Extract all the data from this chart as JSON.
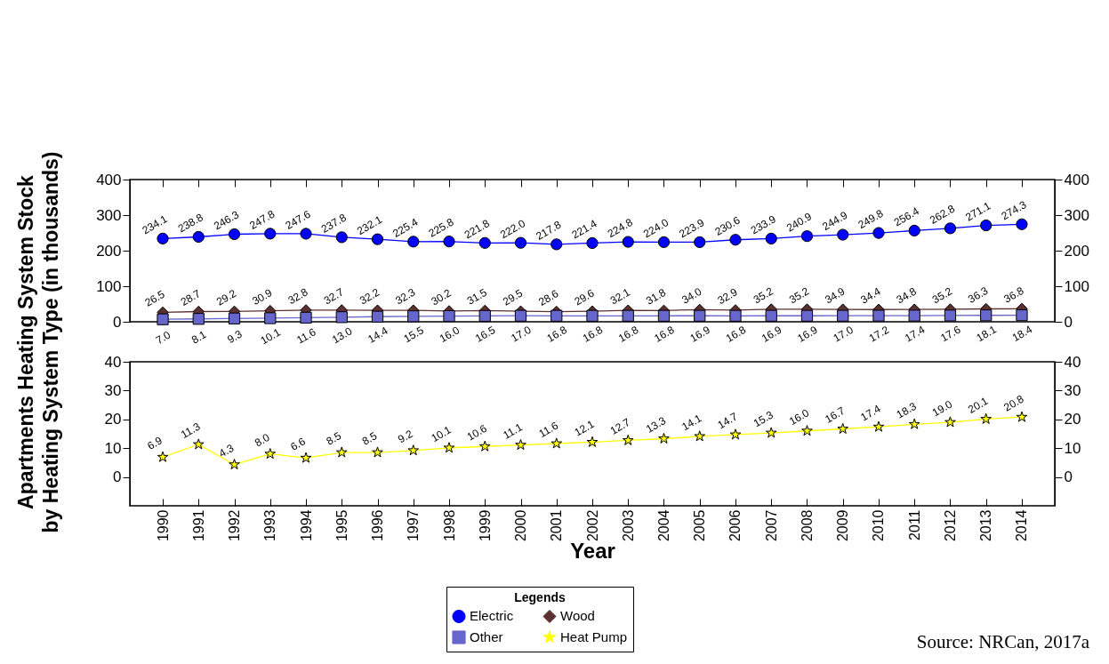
{
  "chart_data": [
    {
      "type": "line",
      "ylabel": "Apartments Heating System Stock\nby Heating System Type (in thousands)",
      "categories": [
        "1990",
        "1991",
        "1992",
        "1993",
        "1994",
        "1995",
        "1996",
        "1997",
        "1998",
        "1999",
        "2000",
        "2001",
        "2002",
        "2003",
        "2004",
        "2005",
        "2006",
        "2007",
        "2008",
        "2009",
        "2010",
        "2011",
        "2012",
        "2013",
        "2014"
      ],
      "series": [
        {
          "name": "Electric",
          "color": "#0000ff",
          "marker": "circle",
          "values": [
            234.1,
            238.8,
            246.3,
            247.8,
            247.6,
            237.8,
            232.1,
            225.4,
            225.8,
            221.8,
            222.0,
            217.8,
            221.4,
            224.8,
            224.0,
            223.9,
            230.6,
            233.9,
            240.9,
            244.9,
            249.8,
            256.4,
            262.8,
            271.1,
            274.3
          ],
          "value_labels": [
            "234.1",
            "238.8",
            "246.3",
            "247.8",
            "247.6",
            "237.8",
            "232.1",
            "225.4",
            "225.8",
            "221.8",
            "222.0",
            "217.8",
            "221.4",
            "224.8",
            "224.0",
            "223.9",
            "230.6",
            "233.9",
            "240.9",
            "244.9",
            "249.8",
            "256.4",
            "262.8",
            "271.1",
            "274.3"
          ]
        },
        {
          "name": "Wood",
          "color": "#5c3030",
          "marker": "diamond",
          "values": [
            26.5,
            28.7,
            29.2,
            30.9,
            32.8,
            32.7,
            32.2,
            32.3,
            30.2,
            31.5,
            29.5,
            28.6,
            29.6,
            32.1,
            31.8,
            34.0,
            32.9,
            35.2,
            35.2,
            34.9,
            34.4,
            34.8,
            35.2,
            36.3,
            36.8
          ],
          "value_labels": [
            "26.5",
            "28.7",
            "29.2",
            "30.9",
            "32.8",
            "32.7",
            "32.2",
            "32.3",
            "30.2",
            "31.5",
            "29.5",
            "28.6",
            "29.6",
            "32.1",
            "31.8",
            "34.0",
            "32.9",
            "35.2",
            "35.2",
            "34.9",
            "34.4",
            "34.8",
            "35.2",
            "36.3",
            "36.8"
          ]
        },
        {
          "name": "Other",
          "color": "#6666cc",
          "marker": "square",
          "values": [
            7.0,
            8.1,
            9.3,
            10.1,
            11.6,
            13.0,
            14.4,
            15.5,
            16.0,
            16.5,
            17.0,
            16.8,
            16.8,
            16.8,
            16.8,
            16.9,
            16.8,
            16.9,
            16.9,
            17.0,
            17.2,
            17.4,
            17.6,
            18.1,
            18.4
          ],
          "value_labels": [
            "7.0",
            "8.1",
            "9.3",
            "10.1",
            "11.6",
            "13.0",
            "14.4",
            "15.5",
            "16.0",
            "16.5",
            "17.0",
            "16.8",
            "16.8",
            "16.8",
            "16.8",
            "16.9",
            "16.8",
            "16.9",
            "16.9",
            "17.0",
            "17.2",
            "17.4",
            "17.6",
            "18.1",
            "18.4"
          ]
        }
      ],
      "ylim": [
        0,
        400
      ],
      "yticks": [
        0,
        100,
        200,
        300,
        400
      ],
      "y2lim": [
        0,
        400
      ],
      "y2ticks": [
        0,
        100,
        200,
        300,
        400
      ],
      "tick_labels": "y",
      "data_labels": true,
      "legend": "bottom",
      "legend_title": "Legends"
    },
    {
      "type": "line",
      "xlabel": "Year",
      "categories": [
        "1990",
        "1991",
        "1992",
        "1993",
        "1994",
        "1995",
        "1996",
        "1997",
        "1998",
        "1999",
        "2000",
        "2001",
        "2002",
        "2003",
        "2004",
        "2005",
        "2006",
        "2007",
        "2008",
        "2009",
        "2010",
        "2011",
        "2012",
        "2013",
        "2014"
      ],
      "series": [
        {
          "name": "Heat Pump",
          "color": "#ffff00",
          "marker": "star",
          "values": [
            6.9,
            11.3,
            4.3,
            8.0,
            6.6,
            8.5,
            8.5,
            9.2,
            10.1,
            10.6,
            11.1,
            11.6,
            12.1,
            12.7,
            13.3,
            14.1,
            14.7,
            15.3,
            16.0,
            16.7,
            17.4,
            18.3,
            19.0,
            20.1,
            20.8
          ],
          "value_labels": [
            "6.9",
            "11.3",
            "4.3",
            "8.0",
            "6.6",
            "8.5",
            "8.5",
            "9.2",
            "10.1",
            "10.6",
            "11.1",
            "11.6",
            "12.1",
            "12.7",
            "13.3",
            "14.1",
            "14.7",
            "15.3",
            "16.0",
            "16.7",
            "17.4",
            "18.3",
            "19.0",
            "20.1",
            "20.8"
          ]
        }
      ],
      "ylim": [
        -10,
        40
      ],
      "yticks": [
        0,
        10,
        20,
        30,
        40
      ],
      "y2lim": [
        -10,
        40
      ],
      "y2ticks": [
        0,
        10,
        20,
        30,
        40
      ],
      "data_labels": true,
      "annotations": [
        "Source: NRCan, 2017a"
      ]
    }
  ]
}
